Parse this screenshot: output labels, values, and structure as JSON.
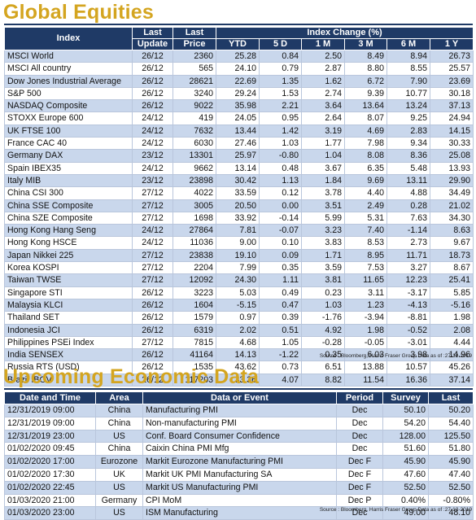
{
  "equities": {
    "title": "Global Equities",
    "headers": {
      "index": "Index",
      "last_update_1": "Last",
      "last_update_2": "Update",
      "last_price_1": "Last",
      "last_price_2": "Price",
      "index_change": "Index Change (%)",
      "ytd": "YTD",
      "d5": "5 D",
      "m1": "1 M",
      "m3": "3 M",
      "m6": "6 M",
      "y1": "1 Y"
    },
    "rows": [
      {
        "name": "MSCI World",
        "update": "26/12",
        "price": "2360",
        "ytd": "25.28",
        "d5": "0.84",
        "m1": "2.50",
        "m3": "8.49",
        "m6": "8.94",
        "y1": "26.73"
      },
      {
        "name": "MSCI All country",
        "update": "26/12",
        "price": "565",
        "ytd": "24.10",
        "d5": "0.79",
        "m1": "2.87",
        "m3": "8.80",
        "m6": "8.55",
        "y1": "25.57"
      },
      {
        "name": "Dow Jones Industrial Average",
        "update": "26/12",
        "price": "28621",
        "ytd": "22.69",
        "d5": "1.35",
        "m1": "1.62",
        "m3": "6.72",
        "m6": "7.90",
        "y1": "23.69"
      },
      {
        "name": "S&P 500",
        "update": "26/12",
        "price": "3240",
        "ytd": "29.24",
        "d5": "1.53",
        "m1": "2.74",
        "m3": "9.39",
        "m6": "10.77",
        "y1": "30.18"
      },
      {
        "name": "NASDAQ Composite",
        "update": "26/12",
        "price": "9022",
        "ytd": "35.98",
        "d5": "2.21",
        "m1": "3.64",
        "m3": "13.64",
        "m6": "13.24",
        "y1": "37.13"
      },
      {
        "name": "STOXX Europe 600",
        "update": "24/12",
        "price": "419",
        "ytd": "24.05",
        "d5": "0.95",
        "m1": "2.64",
        "m3": "8.07",
        "m6": "9.25",
        "y1": "24.94"
      },
      {
        "name": "UK FTSE 100",
        "update": "24/12",
        "price": "7632",
        "ytd": "13.44",
        "d5": "1.42",
        "m1": "3.19",
        "m3": "4.69",
        "m6": "2.83",
        "y1": "14.15"
      },
      {
        "name": "France CAC 40",
        "update": "24/12",
        "price": "6030",
        "ytd": "27.46",
        "d5": "1.03",
        "m1": "1.77",
        "m3": "7.98",
        "m6": "9.34",
        "y1": "30.33"
      },
      {
        "name": "Germany DAX",
        "update": "23/12",
        "price": "13301",
        "ytd": "25.97",
        "d5": "-0.80",
        "m1": "1.04",
        "m3": "8.08",
        "m6": "8.36",
        "y1": "25.08"
      },
      {
        "name": "Spain IBEX35",
        "update": "24/12",
        "price": "9662",
        "ytd": "13.14",
        "d5": "0.48",
        "m1": "3.67",
        "m3": "6.35",
        "m6": "5.48",
        "y1": "13.93"
      },
      {
        "name": "Italy MIB",
        "update": "23/12",
        "price": "23898",
        "ytd": "30.42",
        "d5": "1.13",
        "m1": "1.84",
        "m3": "9.69",
        "m6": "13.11",
        "y1": "29.90"
      },
      {
        "name": "China CSI 300",
        "update": "27/12",
        "price": "4022",
        "ytd": "33.59",
        "d5": "0.12",
        "m1": "3.78",
        "m3": "4.40",
        "m6": "4.88",
        "y1": "34.49"
      },
      {
        "name": "China SSE Composite",
        "update": "27/12",
        "price": "3005",
        "ytd": "20.50",
        "d5": "0.00",
        "m1": "3.51",
        "m3": "2.49",
        "m6": "0.28",
        "y1": "21.02"
      },
      {
        "name": "China SZE Composite",
        "update": "27/12",
        "price": "1698",
        "ytd": "33.92",
        "d5": "-0.14",
        "m1": "5.99",
        "m3": "5.31",
        "m6": "7.63",
        "y1": "34.30"
      },
      {
        "name": "Hong Kong Hang Seng",
        "update": "24/12",
        "price": "27864",
        "ytd": "7.81",
        "d5": "-0.07",
        "m1": "3.23",
        "m3": "7.40",
        "m6": "-1.14",
        "y1": "8.63"
      },
      {
        "name": "Hong Kong HSCE",
        "update": "24/12",
        "price": "11036",
        "ytd": "9.00",
        "d5": "0.10",
        "m1": "3.83",
        "m3": "8.53",
        "m6": "2.73",
        "y1": "9.67"
      },
      {
        "name": "Japan Nikkei 225",
        "update": "27/12",
        "price": "23838",
        "ytd": "19.10",
        "d5": "0.09",
        "m1": "1.71",
        "m3": "8.95",
        "m6": "11.71",
        "y1": "18.73"
      },
      {
        "name": "Korea KOSPI",
        "update": "27/12",
        "price": "2204",
        "ytd": "7.99",
        "d5": "0.35",
        "m1": "3.59",
        "m3": "7.53",
        "m6": "3.27",
        "y1": "8.67"
      },
      {
        "name": "Taiwan TWSE",
        "update": "27/12",
        "price": "12092",
        "ytd": "24.30",
        "d5": "1.11",
        "m1": "3.81",
        "m3": "11.65",
        "m6": "12.23",
        "y1": "25.41"
      },
      {
        "name": "Singapore STI",
        "update": "26/12",
        "price": "3223",
        "ytd": "5.03",
        "d5": "0.49",
        "m1": "0.23",
        "m3": "3.11",
        "m6": "-3.17",
        "y1": "5.85"
      },
      {
        "name": "Malaysia KLCI",
        "update": "26/12",
        "price": "1604",
        "ytd": "-5.15",
        "d5": "0.47",
        "m1": "1.03",
        "m3": "1.23",
        "m6": "-4.13",
        "y1": "-5.16"
      },
      {
        "name": "Thailand SET",
        "update": "26/12",
        "price": "1579",
        "ytd": "0.97",
        "d5": "0.39",
        "m1": "-1.76",
        "m3": "-3.94",
        "m6": "-8.81",
        "y1": "1.98"
      },
      {
        "name": "Indonesia JCI",
        "update": "26/12",
        "price": "6319",
        "ytd": "2.02",
        "d5": "0.51",
        "m1": "4.92",
        "m3": "1.98",
        "m6": "-0.52",
        "y1": "2.08"
      },
      {
        "name": "Philippines PSEi Index",
        "update": "27/12",
        "price": "7815",
        "ytd": "4.68",
        "d5": "1.05",
        "m1": "-0.28",
        "m3": "-0.05",
        "m6": "-3.01",
        "y1": "4.44"
      },
      {
        "name": "India SENSEX",
        "update": "26/12",
        "price": "41164",
        "ytd": "14.13",
        "d5": "-1.22",
        "m1": "0.35",
        "m3": "6.03",
        "m6": "3.98",
        "y1": "14.96"
      },
      {
        "name": "Russia RTS (USD)",
        "update": "26/12",
        "price": "1535",
        "ytd": "43.62",
        "d5": "0.73",
        "m1": "6.51",
        "m3": "13.88",
        "m6": "10.57",
        "y1": "45.26"
      },
      {
        "name": "Brazil IBOV",
        "update": "26/12",
        "price": "117203",
        "ytd": "33.36",
        "d5": "4.07",
        "m1": "8.82",
        "m3": "11.54",
        "m6": "16.36",
        "y1": "37.14"
      }
    ],
    "source": "Source : Bloomberg, Harris Fraser Group Data as of :27-12-2019"
  },
  "economic": {
    "title": "Upcoming Economic Data",
    "headers": {
      "date": "Date and Time",
      "area": "Area",
      "event": "Data or Event",
      "period": "Period",
      "survey": "Survey",
      "last": "Last"
    },
    "rows": [
      {
        "date": "12/31/2019 09:00",
        "area": "China",
        "event": "Manufacturing PMI",
        "period": "Dec",
        "survey": "50.10",
        "last": "50.20"
      },
      {
        "date": "12/31/2019 09:00",
        "area": "China",
        "event": "Non-manufacturing PMI",
        "period": "Dec",
        "survey": "54.20",
        "last": "54.40"
      },
      {
        "date": "12/31/2019 23:00",
        "area": "US",
        "event": "Conf. Board Consumer Confidence",
        "period": "Dec",
        "survey": "128.00",
        "last": "125.50"
      },
      {
        "date": "01/02/2020 09:45",
        "area": "China",
        "event": "Caixin China PMI Mfg",
        "period": "Dec",
        "survey": "51.60",
        "last": "51.80"
      },
      {
        "date": "01/02/2020 17:00",
        "area": "Eurozone",
        "event": "Markit Eurozone Manufacturing PMI",
        "period": "Dec F",
        "survey": "45.90",
        "last": "45.90"
      },
      {
        "date": "01/02/2020 17:30",
        "area": "UK",
        "event": "Markit UK PMI Manufacturing SA",
        "period": "Dec F",
        "survey": "47.60",
        "last": "47.40"
      },
      {
        "date": "01/02/2020 22:45",
        "area": "US",
        "event": "Markit US Manufacturing PMI",
        "period": "Dec F",
        "survey": "52.50",
        "last": "52.50"
      },
      {
        "date": "01/03/2020 21:00",
        "area": "Germany",
        "event": "CPI MoM",
        "period": "Dec P",
        "survey": "0.40%",
        "last": "-0.80%"
      },
      {
        "date": "01/03/2020 23:00",
        "area": "US",
        "event": "ISM Manufacturing",
        "period": "Dec",
        "survey": "49.00",
        "last": "48.10"
      }
    ],
    "source": "Source : Bloomberg, Harris Fraser Group Data as of :27-12-2019"
  }
}
